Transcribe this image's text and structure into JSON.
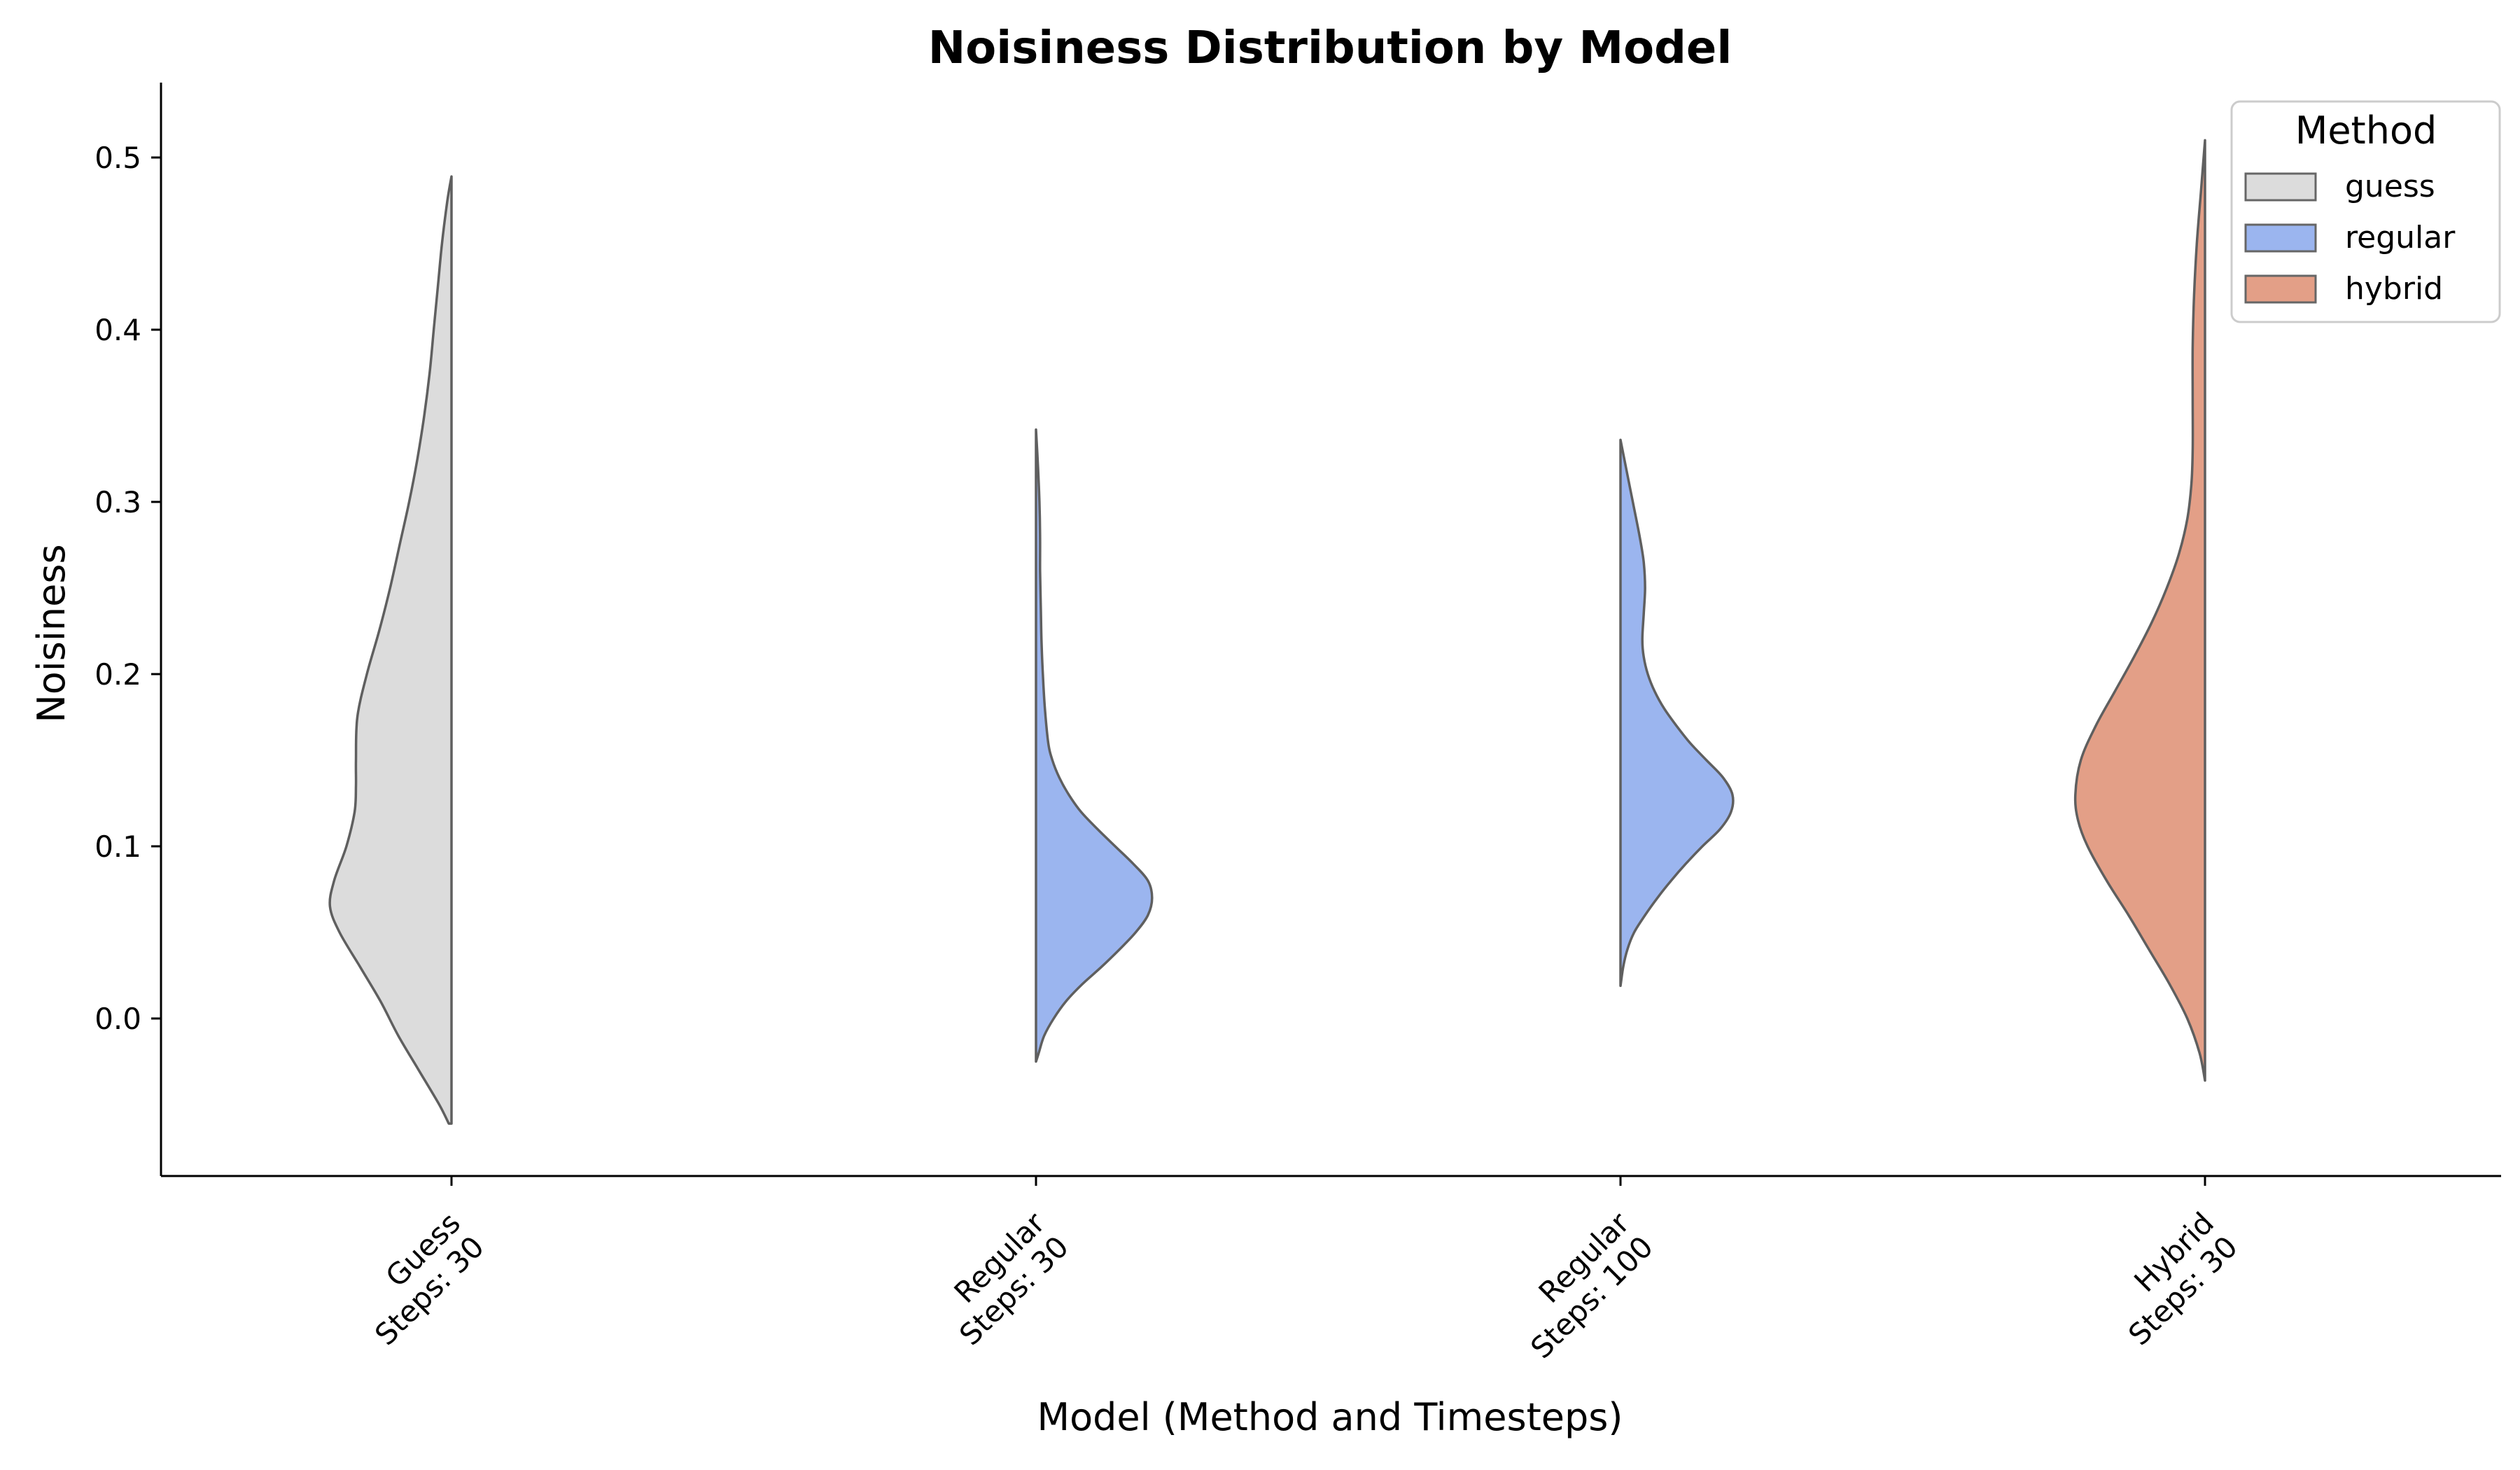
{
  "chart_data": {
    "type": "violin",
    "title": "Noisiness Distribution by Model",
    "xlabel": "Model (Method and Timesteps)",
    "ylabel": "Noisiness",
    "ylim": [
      -0.09,
      0.545
    ],
    "yticks": [
      0.0,
      0.1,
      0.2,
      0.3,
      0.4,
      0.5
    ],
    "ytick_labels": [
      "0.0",
      "0.1",
      "0.2",
      "0.3",
      "0.4",
      "0.5"
    ],
    "grid": false,
    "split": true,
    "categories": [
      {
        "line1": "Guess",
        "line2": "Steps: 30",
        "method": "guess",
        "side": "left"
      },
      {
        "line1": "Regular",
        "line2": "Steps: 30",
        "method": "regular",
        "side": "right"
      },
      {
        "line1": "Regular",
        "line2": "Steps: 100",
        "method": "regular",
        "side": "right"
      },
      {
        "line1": "Hybrid",
        "line2": "Steps: 30",
        "method": "hybrid",
        "side": "left"
      }
    ],
    "legend": {
      "title": "Method",
      "placement": "top-right",
      "entries": [
        {
          "label": "guess",
          "color": "#dcdcdc"
        },
        {
          "label": "regular",
          "color": "#9bb5ef"
        },
        {
          "label": "hybrid",
          "color": "#e39f87"
        }
      ]
    },
    "series": [
      {
        "method": "guess",
        "color": "#dcdcdc",
        "profile": [
          [
            -0.061,
            0.02
          ],
          [
            -0.05,
            0.09
          ],
          [
            -0.03,
            0.24
          ],
          [
            -0.01,
            0.39
          ],
          [
            0.01,
            0.52
          ],
          [
            0.03,
            0.67
          ],
          [
            0.05,
            0.82
          ],
          [
            0.065,
            0.89
          ],
          [
            0.08,
            0.86
          ],
          [
            0.1,
            0.77
          ],
          [
            0.12,
            0.71
          ],
          [
            0.135,
            0.7
          ],
          [
            0.15,
            0.7
          ],
          [
            0.175,
            0.69
          ],
          [
            0.2,
            0.62
          ],
          [
            0.225,
            0.53
          ],
          [
            0.25,
            0.45
          ],
          [
            0.275,
            0.38
          ],
          [
            0.3,
            0.31
          ],
          [
            0.325,
            0.25
          ],
          [
            0.35,
            0.2
          ],
          [
            0.375,
            0.16
          ],
          [
            0.4,
            0.13
          ],
          [
            0.425,
            0.1
          ],
          [
            0.45,
            0.07
          ],
          [
            0.475,
            0.03
          ],
          [
            0.489,
            0.0
          ]
        ]
      },
      {
        "method": "regular",
        "color": "#9bb5ef",
        "profile": [
          [
            -0.025,
            0.0
          ],
          [
            -0.02,
            0.02
          ],
          [
            -0.01,
            0.06
          ],
          [
            0.0,
            0.13
          ],
          [
            0.01,
            0.22
          ],
          [
            0.02,
            0.34
          ],
          [
            0.03,
            0.48
          ],
          [
            0.04,
            0.61
          ],
          [
            0.05,
            0.73
          ],
          [
            0.06,
            0.82
          ],
          [
            0.07,
            0.85
          ],
          [
            0.08,
            0.82
          ],
          [
            0.09,
            0.71
          ],
          [
            0.1,
            0.58
          ],
          [
            0.11,
            0.45
          ],
          [
            0.12,
            0.33
          ],
          [
            0.13,
            0.24
          ],
          [
            0.14,
            0.17
          ],
          [
            0.15,
            0.12
          ],
          [
            0.16,
            0.09
          ],
          [
            0.18,
            0.065
          ],
          [
            0.2,
            0.05
          ],
          [
            0.22,
            0.04
          ],
          [
            0.24,
            0.035
          ],
          [
            0.26,
            0.03
          ],
          [
            0.28,
            0.03
          ],
          [
            0.3,
            0.025
          ],
          [
            0.32,
            0.015
          ],
          [
            0.342,
            0.0
          ]
        ]
      },
      {
        "method": "regular",
        "color": "#9bb5ef",
        "profile": [
          [
            0.019,
            0.0
          ],
          [
            0.03,
            0.02
          ],
          [
            0.04,
            0.05
          ],
          [
            0.05,
            0.1
          ],
          [
            0.06,
            0.18
          ],
          [
            0.07,
            0.27
          ],
          [
            0.08,
            0.37
          ],
          [
            0.09,
            0.48
          ],
          [
            0.1,
            0.6
          ],
          [
            0.11,
            0.73
          ],
          [
            0.12,
            0.81
          ],
          [
            0.13,
            0.82
          ],
          [
            0.14,
            0.75
          ],
          [
            0.15,
            0.63
          ],
          [
            0.16,
            0.51
          ],
          [
            0.17,
            0.41
          ],
          [
            0.18,
            0.32
          ],
          [
            0.19,
            0.25
          ],
          [
            0.2,
            0.2
          ],
          [
            0.21,
            0.17
          ],
          [
            0.22,
            0.16
          ],
          [
            0.235,
            0.17
          ],
          [
            0.25,
            0.18
          ],
          [
            0.265,
            0.17
          ],
          [
            0.28,
            0.14
          ],
          [
            0.3,
            0.09
          ],
          [
            0.32,
            0.04
          ],
          [
            0.336,
            0.0
          ]
        ]
      },
      {
        "method": "hybrid",
        "color": "#e39f87",
        "profile": [
          [
            -0.036,
            0.0
          ],
          [
            -0.02,
            0.04
          ],
          [
            0.0,
            0.13
          ],
          [
            0.02,
            0.26
          ],
          [
            0.04,
            0.41
          ],
          [
            0.06,
            0.56
          ],
          [
            0.08,
            0.72
          ],
          [
            0.1,
            0.86
          ],
          [
            0.115,
            0.93
          ],
          [
            0.13,
            0.95
          ],
          [
            0.15,
            0.91
          ],
          [
            0.17,
            0.8
          ],
          [
            0.19,
            0.66
          ],
          [
            0.21,
            0.52
          ],
          [
            0.23,
            0.39
          ],
          [
            0.25,
            0.28
          ],
          [
            0.27,
            0.19
          ],
          [
            0.29,
            0.13
          ],
          [
            0.31,
            0.1
          ],
          [
            0.33,
            0.09
          ],
          [
            0.36,
            0.09
          ],
          [
            0.39,
            0.09
          ],
          [
            0.42,
            0.08
          ],
          [
            0.45,
            0.06
          ],
          [
            0.48,
            0.03
          ],
          [
            0.51,
            0.0
          ]
        ]
      }
    ]
  }
}
